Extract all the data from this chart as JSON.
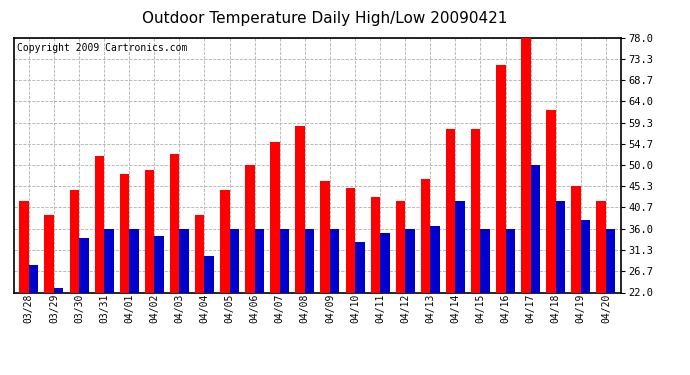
{
  "title": "Outdoor Temperature Daily High/Low 20090421",
  "copyright_text": "Copyright 2009 Cartronics.com",
  "dates": [
    "03/28",
    "03/29",
    "03/30",
    "03/31",
    "04/01",
    "04/02",
    "04/03",
    "04/04",
    "04/05",
    "04/06",
    "04/07",
    "04/08",
    "04/09",
    "04/10",
    "04/11",
    "04/12",
    "04/13",
    "04/14",
    "04/15",
    "04/16",
    "04/17",
    "04/18",
    "04/19",
    "04/20"
  ],
  "highs": [
    42.0,
    39.0,
    44.5,
    52.0,
    48.0,
    49.0,
    52.5,
    39.0,
    44.5,
    50.0,
    55.0,
    58.5,
    46.5,
    45.0,
    43.0,
    42.0,
    47.0,
    58.0,
    58.0,
    72.0,
    78.0,
    62.0,
    45.3,
    42.0
  ],
  "lows": [
    28.0,
    23.0,
    34.0,
    36.0,
    36.0,
    34.5,
    36.0,
    30.0,
    36.0,
    36.0,
    36.0,
    36.0,
    36.0,
    33.0,
    35.0,
    36.0,
    36.5,
    42.0,
    36.0,
    36.0,
    50.0,
    42.0,
    38.0,
    36.0
  ],
  "high_color": "#ff0000",
  "low_color": "#0000cc",
  "bg_color": "#ffffff",
  "plot_bg_color": "#ffffff",
  "grid_color": "#b0b0b0",
  "title_fontsize": 11,
  "copyright_fontsize": 7,
  "yticks": [
    22.0,
    26.7,
    31.3,
    36.0,
    40.7,
    45.3,
    50.0,
    54.7,
    59.3,
    64.0,
    68.7,
    73.3,
    78.0
  ],
  "ylim": [
    22.0,
    78.0
  ],
  "bar_width": 0.38
}
